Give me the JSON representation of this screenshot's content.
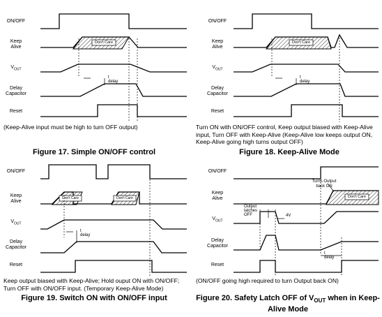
{
  "figures": [
    {
      "id": "fig17",
      "labels": {
        "on_off": "ON/OFF",
        "keep": "Keep\nAlive",
        "vout": "V",
        "vout_sub": "OUT",
        "delay": "Delay\nCapacitor",
        "reset": "Reset"
      },
      "annotations": [
        "Don't Care",
        "t delay"
      ],
      "caption": "(Keep-Alive input must be high to turn OFF output)",
      "title": "Figure 17. Simple ON/OFF control"
    },
    {
      "id": "fig18",
      "labels": {
        "on_off": "ON/OFF",
        "keep": "Keep\nAlive",
        "vout": "V",
        "vout_sub": "OUT",
        "delay": "Delay\nCapacitor",
        "reset": "Reset"
      },
      "annotations": [
        "Don't Care",
        "t delay"
      ],
      "caption": "Turn ON with ON/OFF control, Keep output biased with Keep-Alive input, Turn OFF with Keep-Alive (Keep-Alive low keeps output ON, Keep-Alive going high turns output OFF)",
      "title": "Figure 18. Keep-Alive Mode"
    },
    {
      "id": "fig19",
      "labels": {
        "on_off": "ON/OFF",
        "keep": "Keep\nAlive",
        "vout": "V",
        "vout_sub": "OUT",
        "delay": "Delay\nCapacitor",
        "reset": "Reset"
      },
      "annotations": [
        "Don't Care",
        "Don't Care",
        "t delay"
      ],
      "caption": "Keep output biased with Keep-Alive; Hold ouput ON with ON/OFF; Turn OFF with ON/OFF input. (Temporary Keep-Alive Mode)",
      "title": "Figure 19. Switch ON with ON/OFF input"
    },
    {
      "id": "fig20",
      "labels": {
        "on_off": "ON/OFF",
        "keep": "Keep\nAlive",
        "vout": "V",
        "vout_sub": "OUT",
        "delay": "Delay\nCapacitor",
        "reset": "Reset"
      },
      "annotations": [
        "Turns Output\nback ON",
        "Don't Care",
        "Output latches OFF",
        "4V",
        "t delay"
      ],
      "caption": "(ON/OFF going high required to turn Output back ON)",
      "title_pre": "Figure 20. Safety Latch OFF of V",
      "title_sub": "OUT",
      "title_post": " when in Keep-Alive Mode"
    }
  ]
}
